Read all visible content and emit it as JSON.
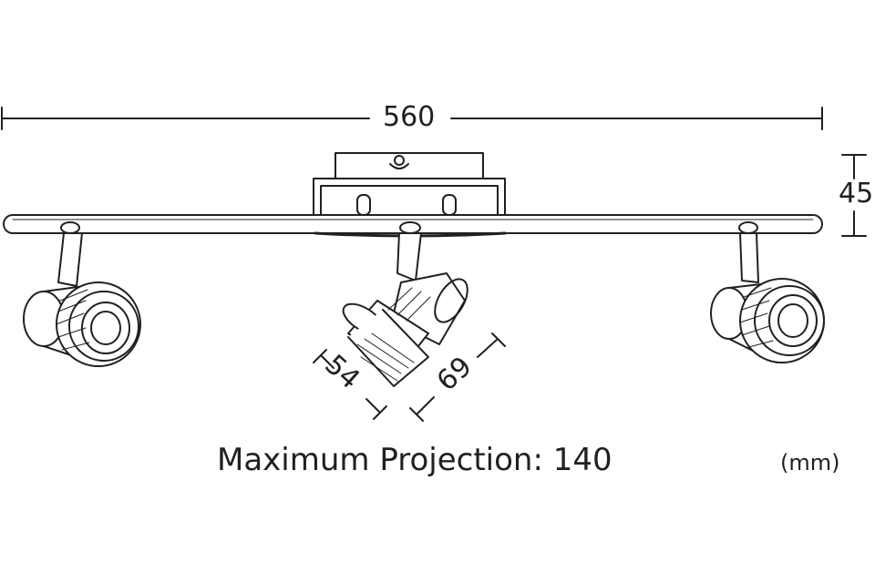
{
  "dimensions": {
    "overall_length": "560",
    "height": "45",
    "head_diameter": "54",
    "head_depth": "69"
  },
  "caption": "Maximum Projection: 140",
  "unit_label": "(mm)",
  "colors": {
    "line": "#231f20",
    "background": "#ffffff"
  }
}
